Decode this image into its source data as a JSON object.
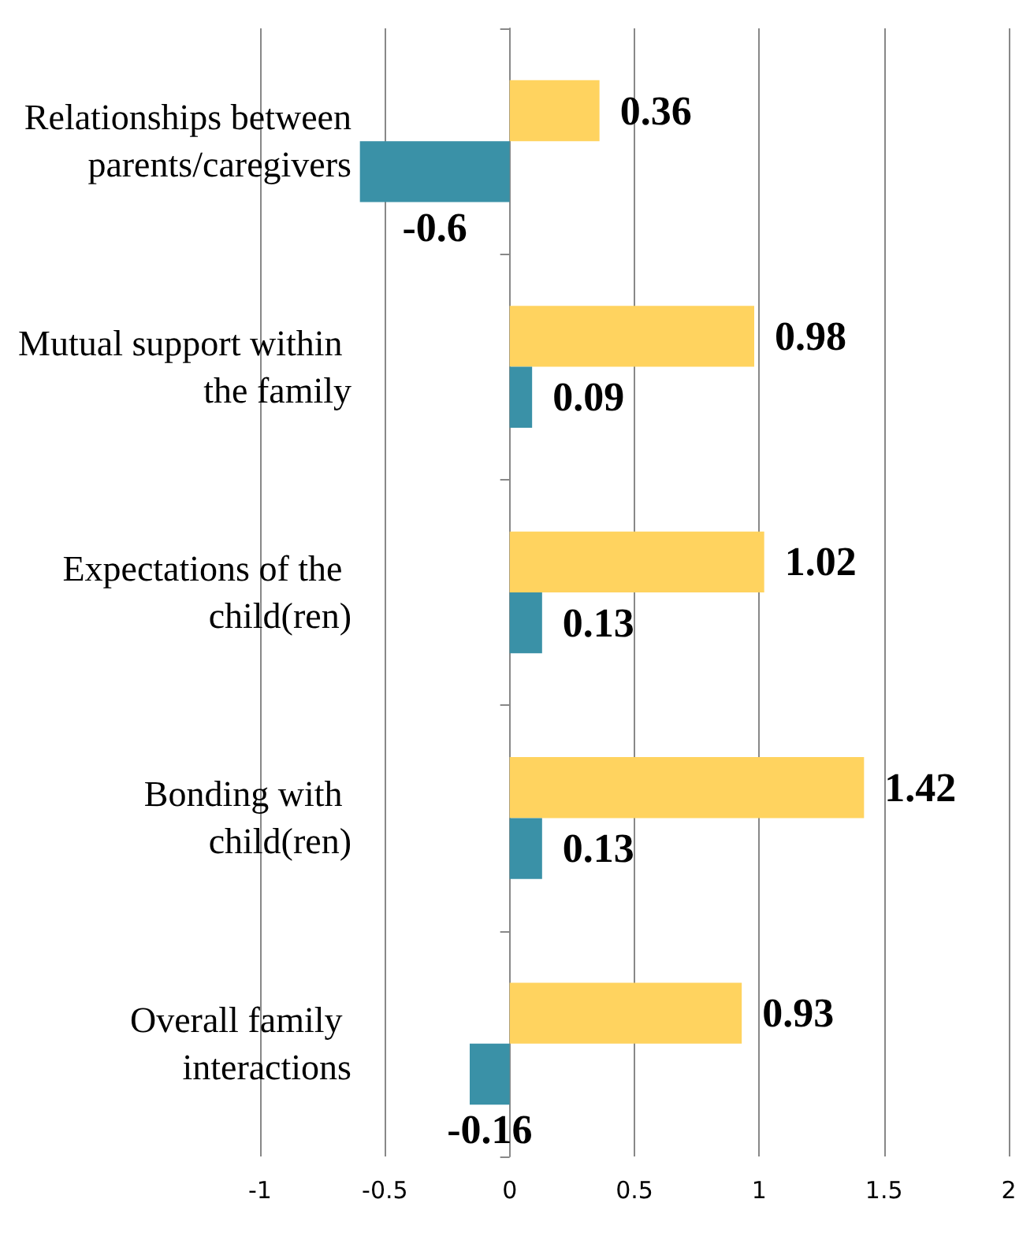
{
  "chart_data": {
    "type": "bar",
    "orientation": "horizontal",
    "categories": [
      "Relationships between parents/caregivers",
      "Mutual support within the family",
      "Expectations of the child(ren)",
      "Bonding with child(ren)",
      "Overall family interactions"
    ],
    "series": [
      {
        "color": "#ffd35f",
        "values": [
          0.36,
          0.98,
          1.02,
          1.42,
          0.93
        ]
      },
      {
        "color": "#3a91a7",
        "values": [
          -0.6,
          0.09,
          0.13,
          0.13,
          -0.16
        ]
      }
    ],
    "xlim": [
      -1,
      2
    ],
    "xticks": [
      -1,
      -0.5,
      0,
      0.5,
      1,
      1.5,
      2
    ],
    "grid": "x",
    "data_labels": true
  }
}
